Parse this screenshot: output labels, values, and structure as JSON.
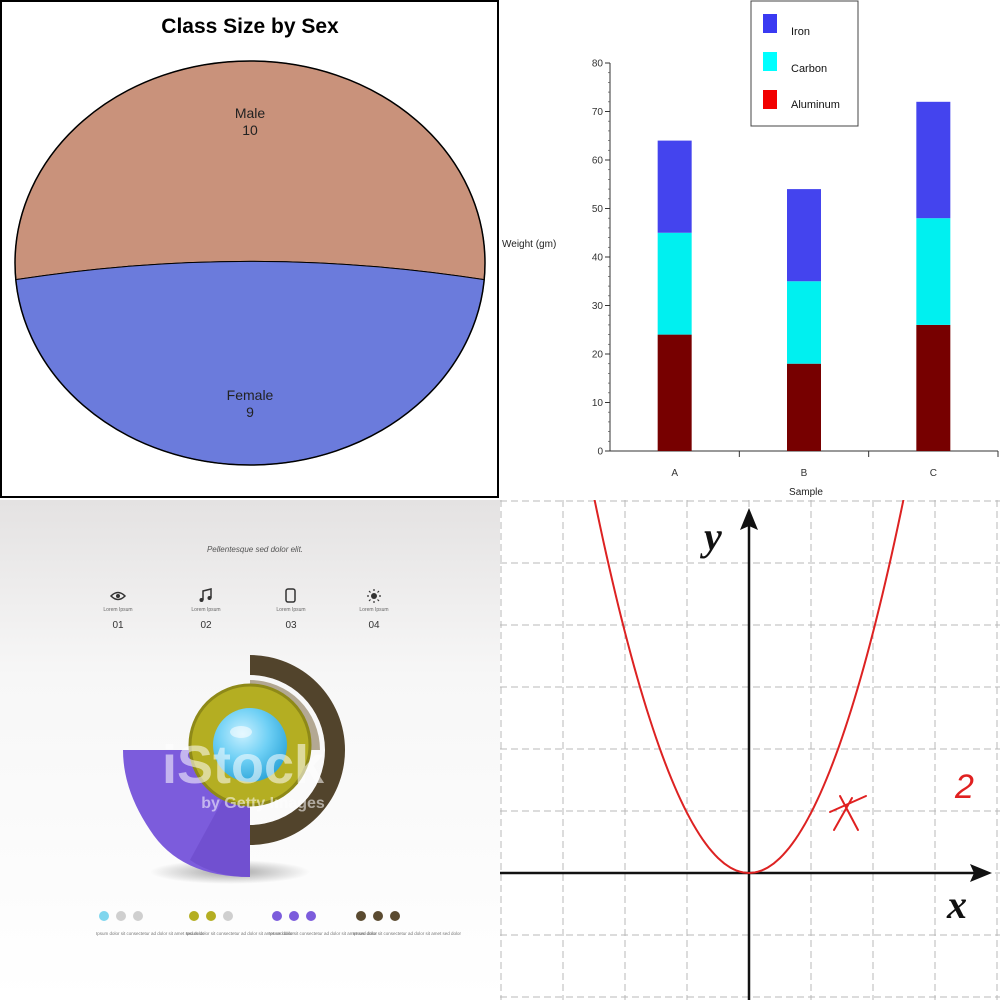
{
  "chart_data": [
    {
      "type": "pie",
      "title": "Class Size by Sex",
      "slices": [
        {
          "label": "Male",
          "value": 10,
          "color": "#c9927b"
        },
        {
          "label": "Female",
          "value": 9,
          "color": "#6b7bdc"
        }
      ]
    },
    {
      "type": "bar",
      "stacked": true,
      "title": "",
      "xlabel": "Sample",
      "ylabel": "Weight (gm)",
      "ylim": [
        0,
        80
      ],
      "yticks": [
        "0",
        "10",
        "20",
        "30",
        "40",
        "50",
        "60",
        "70",
        "80"
      ],
      "categories": [
        "A",
        "B",
        "C"
      ],
      "series": [
        {
          "name": "Aluminum",
          "values": [
            24,
            18,
            26
          ],
          "color": "#770000"
        },
        {
          "name": "Carbon",
          "values": [
            21,
            17,
            22
          ],
          "color": "#00f0f0"
        },
        {
          "name": "Iron",
          "values": [
            19,
            19,
            24
          ],
          "color": "#4444ee"
        }
      ],
      "legend": {
        "placement": "top",
        "color_swatches": {
          "Iron": "#3a3af2",
          "Carbon": "#00ffff",
          "Aluminum": "#f20000"
        }
      }
    },
    {
      "type": "infographic",
      "heading": "Pellentesque sed dolor elit.",
      "watermark": "iStock",
      "watermark_sub": "by Getty Images",
      "steps": [
        {
          "icon": "eye-icon",
          "caption": "Lorem Ipsum",
          "number": "01",
          "color": "#7fd6ee"
        },
        {
          "icon": "music-note-icon",
          "caption": "Lorem Ipsum",
          "number": "02",
          "color": "#b4ae22"
        },
        {
          "icon": "tablet-icon",
          "caption": "Lorem Ipsum",
          "number": "03",
          "color": "#7c5cdc"
        },
        {
          "icon": "sun-icon",
          "caption": "Lorem Ipsum",
          "number": "04",
          "color": "#5a4a30"
        }
      ],
      "footer_text": "Ipsum dolor sit consectetur ad dolor sit amet sed dolor",
      "colors": {
        "cyan": "#7fd6ee",
        "olive": "#b4ae22",
        "purple": "#7c5cdc",
        "brown": "#5a4a30"
      }
    },
    {
      "type": "line",
      "function": "y = x^2",
      "xlabel": "x",
      "ylabel": "y",
      "grid": true,
      "xlim": [
        -4,
        4
      ],
      "ylim": [
        -1,
        6
      ],
      "annotation": "2",
      "curve_color": "#dd2222"
    }
  ]
}
